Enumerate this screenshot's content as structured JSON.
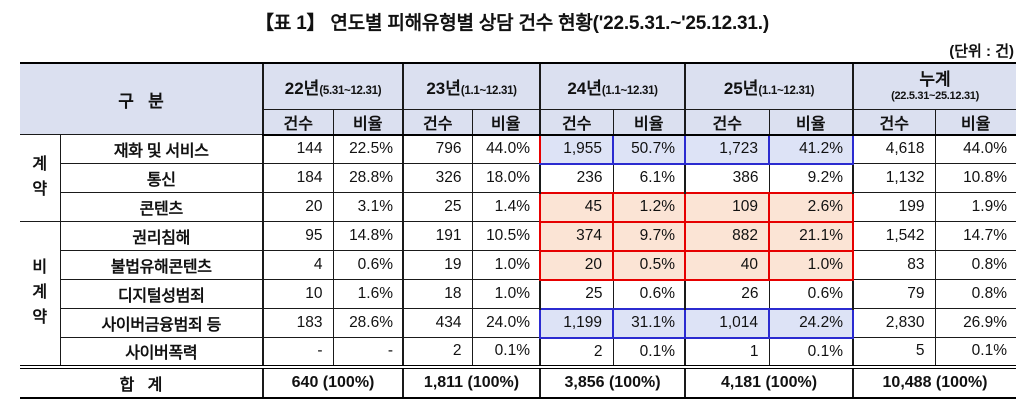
{
  "title": "【표 1】 연도별 피해유형별 상담 건수 현황('22.5.31.~'25.12.31.)",
  "unit_label": "(단위 : 건)",
  "colors": {
    "header_bg": "#dbe0f0",
    "highlight_blue_bg": "#dde3f6",
    "highlight_blue_border": "#2b2bd0",
    "highlight_red_bg": "#fbe4d5",
    "highlight_red_border": "#e60000",
    "grid_line": "#1a1a1a"
  },
  "table": {
    "col_group_header": "구   분",
    "sub_headers": [
      "건수",
      "비율"
    ],
    "year_columns": [
      {
        "label": "22년",
        "period": "(5.31~12.31)",
        "stacked": false
      },
      {
        "label": "23년",
        "period": "(1.1~12.31)",
        "stacked": false
      },
      {
        "label": "24년",
        "period": "(1.1~12.31)",
        "stacked": false
      },
      {
        "label": "25년",
        "period": "(1.1~12.31)",
        "stacked": false
      },
      {
        "label": "누계",
        "period": "(22.5.31~25.12.31)",
        "stacked": true
      }
    ],
    "groups": [
      {
        "label": "계약",
        "display": "계\n약",
        "span": 3
      },
      {
        "label": "비계약",
        "display": "비\n계\n약",
        "span": 5
      }
    ],
    "rows": [
      {
        "type": "재화 및 서비스",
        "highlight": "blue",
        "red_accent": true,
        "values": [
          "144",
          "22.5%",
          "796",
          "44.0%",
          "1,955",
          "50.7%",
          "1,723",
          "41.2%",
          "4,618",
          "44.0%"
        ]
      },
      {
        "type": "통신",
        "highlight": null,
        "red_accent": false,
        "values": [
          "184",
          "28.8%",
          "326",
          "18.0%",
          "236",
          "6.1%",
          "386",
          "9.2%",
          "1,132",
          "10.8%"
        ]
      },
      {
        "type": "콘텐츠",
        "highlight": "red",
        "red_accent": false,
        "values": [
          "20",
          "3.1%",
          "25",
          "1.4%",
          "45",
          "1.2%",
          "109",
          "2.6%",
          "199",
          "1.9%"
        ]
      },
      {
        "type": "권리침해",
        "highlight": "red",
        "red_accent": false,
        "values": [
          "95",
          "14.8%",
          "191",
          "10.5%",
          "374",
          "9.7%",
          "882",
          "21.1%",
          "1,542",
          "14.7%"
        ]
      },
      {
        "type": "불법유해콘텐츠",
        "highlight": "red",
        "red_accent": false,
        "values": [
          "4",
          "0.6%",
          "19",
          "1.0%",
          "20",
          "0.5%",
          "40",
          "1.0%",
          "83",
          "0.8%"
        ]
      },
      {
        "type": "디지털성범죄",
        "highlight": null,
        "red_accent": false,
        "values": [
          "10",
          "1.6%",
          "18",
          "1.0%",
          "25",
          "0.6%",
          "26",
          "0.6%",
          "79",
          "0.8%"
        ]
      },
      {
        "type": "사이버금융범죄 등",
        "highlight": "blue",
        "red_accent": false,
        "values": [
          "183",
          "28.6%",
          "434",
          "24.0%",
          "1,199",
          "31.1%",
          "1,014",
          "24.2%",
          "2,830",
          "26.9%"
        ]
      },
      {
        "type": "사이버폭력",
        "highlight": null,
        "red_accent": false,
        "values": [
          "-",
          "-",
          "2",
          "0.1%",
          "2",
          "0.1%",
          "1",
          "0.1%",
          "5",
          "0.1%"
        ]
      }
    ],
    "total": {
      "label": "합   계",
      "values": [
        "640 (100%)",
        "1,811 (100%)",
        "3,856 (100%)",
        "4,181 (100%)",
        "10,488 (100%)"
      ]
    }
  }
}
